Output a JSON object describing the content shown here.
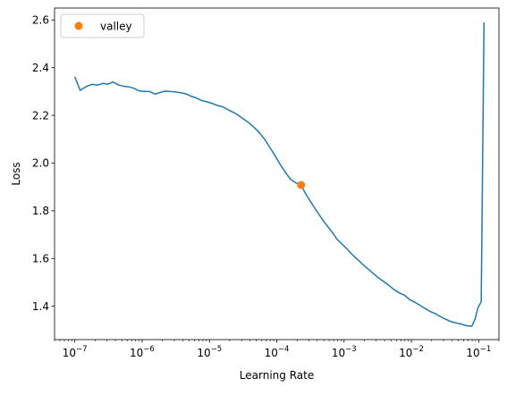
{
  "chart_data": {
    "type": "line",
    "xlabel": "Learning Rate",
    "ylabel": "Loss",
    "xscale": "log",
    "xlim": [
      5e-08,
      0.2
    ],
    "ylim": [
      1.26,
      2.65
    ],
    "grid": false,
    "legend_position": "top-left",
    "x_ticks": [
      {
        "value": 1e-07,
        "base": "10",
        "exp": "−7"
      },
      {
        "value": 1e-06,
        "base": "10",
        "exp": "−6"
      },
      {
        "value": 1e-05,
        "base": "10",
        "exp": "−5"
      },
      {
        "value": 0.0001,
        "base": "10",
        "exp": "−4"
      },
      {
        "value": 0.001,
        "base": "10",
        "exp": "−3"
      },
      {
        "value": 0.01,
        "base": "10",
        "exp": "−2"
      },
      {
        "value": 0.1,
        "base": "10",
        "exp": "−1"
      }
    ],
    "y_ticks": [
      {
        "value": 1.4,
        "label": "1.4"
      },
      {
        "value": 1.6,
        "label": "1.6"
      },
      {
        "value": 1.8,
        "label": "1.8"
      },
      {
        "value": 2.0,
        "label": "2.0"
      },
      {
        "value": 2.2,
        "label": "2.2"
      },
      {
        "value": 2.4,
        "label": "2.4"
      },
      {
        "value": 2.6,
        "label": "2.6"
      }
    ],
    "series": [
      {
        "color": "#1f77b4",
        "points": [
          [
            1e-07,
            2.362
          ],
          [
            1.2e-07,
            2.305
          ],
          [
            1.5e-07,
            2.322
          ],
          [
            1.8e-07,
            2.33
          ],
          [
            2.2e-07,
            2.327
          ],
          [
            2.6e-07,
            2.334
          ],
          [
            3.1e-07,
            2.331
          ],
          [
            3.7e-07,
            2.34
          ],
          [
            4.4e-07,
            2.328
          ],
          [
            5.3e-07,
            2.322
          ],
          [
            6.3e-07,
            2.32
          ],
          [
            7.5e-07,
            2.314
          ],
          [
            9e-07,
            2.303
          ],
          [
            1.1e-06,
            2.3
          ],
          [
            1.3e-06,
            2.3
          ],
          [
            1.55e-06,
            2.289
          ],
          [
            1.85e-06,
            2.296
          ],
          [
            2.2e-06,
            2.302
          ],
          [
            2.65e-06,
            2.3
          ],
          [
            3.2e-06,
            2.298
          ],
          [
            3.8e-06,
            2.295
          ],
          [
            4.5e-06,
            2.29
          ],
          [
            5.4e-06,
            2.28
          ],
          [
            6.5e-06,
            2.272
          ],
          [
            7.7e-06,
            2.262
          ],
          [
            9.2e-06,
            2.257
          ],
          [
            1.1e-05,
            2.25
          ],
          [
            1.3e-05,
            2.242
          ],
          [
            1.6e-05,
            2.235
          ],
          [
            1.9e-05,
            2.223
          ],
          [
            2.3e-05,
            2.212
          ],
          [
            2.7e-05,
            2.2
          ],
          [
            3.2e-05,
            2.185
          ],
          [
            3.9e-05,
            2.168
          ],
          [
            4.6e-05,
            2.15
          ],
          [
            5.5e-05,
            2.128
          ],
          [
            6.6e-05,
            2.1
          ],
          [
            7.9e-05,
            2.066
          ],
          [
            9.4e-05,
            2.032
          ],
          [
            0.000112,
            1.995
          ],
          [
            0.000134,
            1.962
          ],
          [
            0.00016,
            1.932
          ],
          [
            0.00019,
            1.918
          ],
          [
            0.00023,
            1.908
          ],
          [
            0.00027,
            1.87
          ],
          [
            0.00032,
            1.837
          ],
          [
            0.00039,
            1.8
          ],
          [
            0.00046,
            1.77
          ],
          [
            0.00055,
            1.74
          ],
          [
            0.00066,
            1.712
          ],
          [
            0.00079,
            1.68
          ],
          [
            0.00094,
            1.66
          ],
          [
            0.00112,
            1.638
          ],
          [
            0.00134,
            1.615
          ],
          [
            0.0016,
            1.595
          ],
          [
            0.0019,
            1.575
          ],
          [
            0.0023,
            1.555
          ],
          [
            0.0027,
            1.538
          ],
          [
            0.0032,
            1.52
          ],
          [
            0.0039,
            1.503
          ],
          [
            0.0046,
            1.488
          ],
          [
            0.0055,
            1.47
          ],
          [
            0.0066,
            1.456
          ],
          [
            0.0079,
            1.446
          ],
          [
            0.0094,
            1.428
          ],
          [
            0.0112,
            1.417
          ],
          [
            0.0134,
            1.404
          ],
          [
            0.016,
            1.39
          ],
          [
            0.019,
            1.378
          ],
          [
            0.023,
            1.368
          ],
          [
            0.027,
            1.356
          ],
          [
            0.032,
            1.346
          ],
          [
            0.039,
            1.335
          ],
          [
            0.046,
            1.33
          ],
          [
            0.055,
            1.325
          ],
          [
            0.066,
            1.318
          ],
          [
            0.079,
            1.316
          ],
          [
            0.088,
            1.345
          ],
          [
            0.098,
            1.395
          ],
          [
            0.109,
            1.418
          ],
          [
            0.12,
            2.59
          ]
        ]
      },
      {
        "name": "valley",
        "color": "#ff7f0e",
        "marker": "circle",
        "points": [
          [
            0.00023,
            1.908
          ]
        ]
      }
    ]
  }
}
